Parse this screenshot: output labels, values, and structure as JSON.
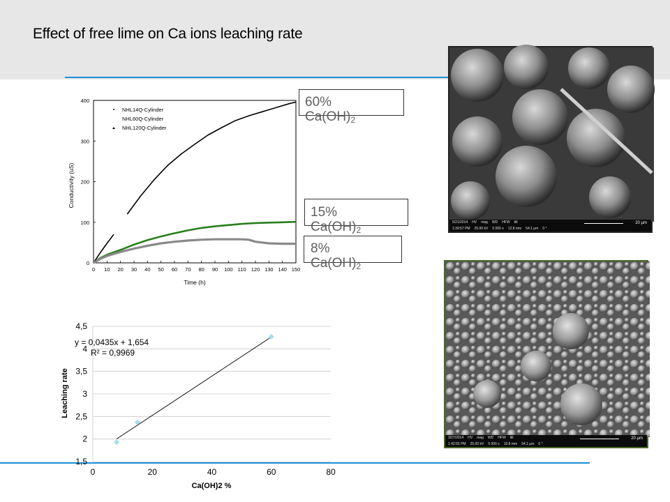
{
  "slide": {
    "title": "Effect of free lime on Ca ions leaching rate"
  },
  "colors": {
    "accent_rule": "#1e8fd6",
    "header_band": "#e7e7e7",
    "series_black": "#000000",
    "series_green": "#2a7d1e",
    "series_gray": "#8a8a8a",
    "trend_marker": "#a8dcea"
  },
  "callouts": [
    {
      "pct": "60%",
      "formula": "Ca(OH)",
      "sub": "2"
    },
    {
      "pct": "15%",
      "formula": "Ca(OH)",
      "sub": "2"
    },
    {
      "pct": "8%",
      "formula": "Ca(OH)",
      "sub": "2"
    }
  ],
  "chart_data": [
    {
      "type": "line",
      "title": "",
      "xlabel": "Time (h)",
      "ylabel": "Conductivity (uS)",
      "xlim": [
        0,
        150
      ],
      "ylim": [
        0,
        400
      ],
      "xticks": [
        "0",
        "10",
        "20",
        "30",
        "40",
        "50",
        "60",
        "70",
        "80",
        "90",
        "100",
        "110",
        "120",
        "130",
        "140",
        "150"
      ],
      "yticks": [
        "0",
        "100",
        "200",
        "300",
        "400"
      ],
      "legend": {
        "placement": "top-left",
        "entries": [
          "NHL14Q-Cylinder",
          "NHL60Q-Cylinder",
          "NHL120Q-Cylinder"
        ]
      },
      "series": [
        {
          "name": "NHL14Q-Cylinder",
          "color": "#000000",
          "x": [
            0,
            5,
            10,
            15,
            25,
            35,
            45,
            55,
            65,
            75,
            85,
            95,
            105,
            115,
            125,
            135,
            145,
            150
          ],
          "y": [
            0,
            25,
            48,
            70,
            120,
            165,
            205,
            240,
            268,
            292,
            315,
            333,
            350,
            362,
            372,
            382,
            392,
            396
          ],
          "gap": [
            15,
            25
          ]
        },
        {
          "name": "NHL60Q-Cylinder",
          "color": "#2a7d1e",
          "x": [
            0,
            5,
            10,
            20,
            30,
            40,
            50,
            60,
            70,
            80,
            90,
            100,
            110,
            120,
            130,
            140,
            150
          ],
          "y": [
            0,
            12,
            20,
            32,
            45,
            56,
            65,
            73,
            80,
            86,
            90,
            93,
            96,
            98,
            99,
            100,
            101
          ]
        },
        {
          "name": "NHL120Q-Cylinder",
          "color": "#8a8a8a",
          "x": [
            0,
            5,
            10,
            20,
            30,
            40,
            50,
            60,
            70,
            80,
            90,
            100,
            110,
            115,
            120,
            130,
            140,
            150
          ],
          "y": [
            0,
            10,
            17,
            27,
            35,
            42,
            48,
            52,
            55,
            57,
            58,
            58,
            58,
            57,
            52,
            48,
            47,
            47
          ]
        }
      ]
    },
    {
      "type": "scatter",
      "title": "",
      "xlabel": "Ca(OH)2  %",
      "ylabel": "Leaching rate",
      "xlim": [
        0,
        80
      ],
      "ylim": [
        1.5,
        4.5
      ],
      "xticks": [
        "0",
        "20",
        "40",
        "60",
        "80"
      ],
      "yticks": [
        "1,5",
        "2",
        "2,5",
        "3",
        "3,5",
        "4",
        "4,5"
      ],
      "grid": "horizontal",
      "points": [
        {
          "x": 8,
          "y": 1.93
        },
        {
          "x": 15,
          "y": 2.37
        },
        {
          "x": 60,
          "y": 4.27
        }
      ],
      "trendline": {
        "slope": 0.0435,
        "intercept": 1.654,
        "x_range": [
          8,
          60
        ]
      },
      "annotations": {
        "equation": "y = 0,0435x + 1,654",
        "r2": "R² = 0,9969"
      }
    }
  ],
  "sem_images": [
    {
      "caption_row": [
        "5/21/2014",
        "HV",
        "mag",
        "WD",
        "HFW",
        "tilt"
      ],
      "caption_row2": [
        "1:39:57 PM",
        "25.00 kV",
        "5 000 x",
        "12.8 mm",
        "54.1 µm",
        "0 °"
      ],
      "scale": "20 µm"
    },
    {
      "caption_row": [
        "3/27/2014",
        "HV",
        "mag",
        "WD",
        "HFW",
        "tilt"
      ],
      "caption_row2": [
        "1:42:55 PM",
        "25.00 kV",
        "5 000 x",
        "10.8 mm",
        "54.1 µm",
        "0 °"
      ],
      "scale": "20 µm"
    }
  ]
}
